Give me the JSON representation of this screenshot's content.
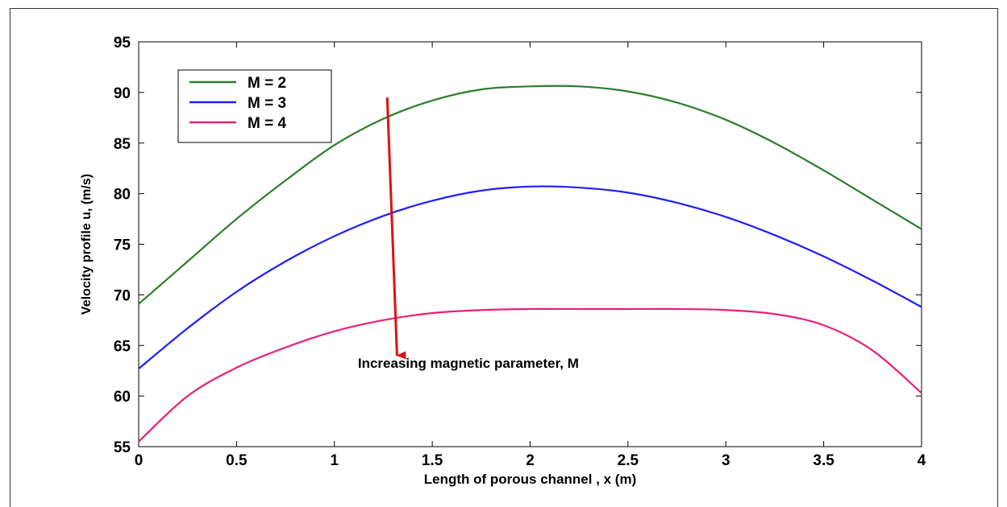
{
  "chart_data": {
    "type": "line",
    "title": "",
    "xlabel": "Length of porous channel , x (m)",
    "ylabel": "Velocity profile u, (m/s)",
    "xlim": [
      0,
      4
    ],
    "ylim": [
      55,
      95
    ],
    "xticks": [
      0,
      0.5,
      1,
      1.5,
      2,
      2.5,
      3,
      3.5,
      4
    ],
    "xtick_labels": [
      "0",
      "0.5",
      "1",
      "1.5",
      "2",
      "2.5",
      "3",
      "3.5",
      "4"
    ],
    "yticks": [
      55,
      60,
      65,
      70,
      75,
      80,
      85,
      90,
      95
    ],
    "ytick_labels": [
      "55",
      "60",
      "65",
      "70",
      "75",
      "80",
      "85",
      "90",
      "95"
    ],
    "grid": false,
    "legend_position": "top-left",
    "series": [
      {
        "name": "M = 2",
        "color": "#2e7d2e",
        "x": [
          0,
          0.25,
          0.5,
          0.75,
          1,
          1.25,
          1.5,
          1.75,
          2,
          2.25,
          2.5,
          2.75,
          3,
          3.25,
          3.5,
          3.75,
          4
        ],
        "y": [
          69.1,
          73.3,
          77.5,
          81.3,
          84.8,
          87.4,
          89.2,
          90.3,
          90.6,
          90.6,
          90.1,
          89.0,
          87.3,
          85.0,
          82.3,
          79.4,
          76.5
        ]
      },
      {
        "name": "M = 3",
        "color": "#1f1fff",
        "x": [
          0,
          0.25,
          0.5,
          0.75,
          1,
          1.25,
          1.5,
          1.75,
          2,
          2.25,
          2.5,
          2.75,
          3,
          3.25,
          3.5,
          3.75,
          4
        ],
        "y": [
          62.7,
          66.7,
          70.3,
          73.3,
          75.8,
          77.8,
          79.3,
          80.3,
          80.7,
          80.6,
          80.1,
          79.1,
          77.7,
          75.9,
          73.8,
          71.4,
          68.8
        ]
      },
      {
        "name": "M = 4",
        "color": "#e8207a",
        "x": [
          0,
          0.25,
          0.5,
          0.75,
          1,
          1.25,
          1.5,
          1.75,
          2,
          2.25,
          2.5,
          2.75,
          3,
          3.25,
          3.5,
          3.75,
          4
        ],
        "y": [
          55.5,
          60.0,
          62.8,
          64.8,
          66.4,
          67.5,
          68.2,
          68.5,
          68.6,
          68.6,
          68.6,
          68.6,
          68.5,
          68.1,
          67.0,
          64.5,
          60.3
        ]
      }
    ],
    "annotation": {
      "text": "Increasing magnetic parameter, M",
      "arrow_color": "#e01010",
      "arrow_from": {
        "x": 1.27,
        "y": 89.5
      },
      "arrow_to": {
        "x": 1.32,
        "y": 64.0
      },
      "text_anchor": {
        "x": 1.12,
        "y": 62.8
      }
    }
  }
}
